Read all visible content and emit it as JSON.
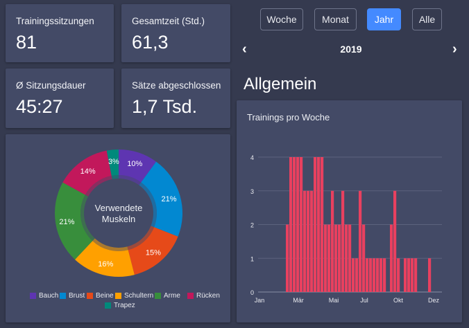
{
  "stats": [
    {
      "label": "Trainingssitzungen",
      "value": "81"
    },
    {
      "label": "Gesamtzeit (Std.)",
      "value": "61,3"
    },
    {
      "label": "Ø Sitzungsdauer",
      "value": "45:27"
    },
    {
      "label": "Sätze abgeschlossen",
      "value": "1,7 Tsd."
    }
  ],
  "period_buttons": [
    {
      "label": "Woche",
      "active": false
    },
    {
      "label": "Monat",
      "active": false
    },
    {
      "label": "Jahr",
      "active": true
    },
    {
      "label": "Alle",
      "active": false
    }
  ],
  "nav": {
    "prev_icon": "chevron-left-icon",
    "next_icon": "chevron-right-icon",
    "year": "2019"
  },
  "section_title": "Allgemein",
  "colors": {
    "accent": "#448aff",
    "bar": "#e8405f"
  },
  "chart_data": [
    {
      "type": "pie",
      "center_label": "Verwendete Muskeln",
      "slices": [
        {
          "name": "Bauch",
          "value": 10,
          "label": "10%",
          "color": "#5e35b1"
        },
        {
          "name": "Brust",
          "value": 21,
          "label": "21%",
          "color": "#0288d1"
        },
        {
          "name": "Beine",
          "value": 15,
          "label": "15%",
          "color": "#e64a19"
        },
        {
          "name": "Schultern",
          "value": 16,
          "label": "16%",
          "color": "#ffa000"
        },
        {
          "name": "Arme",
          "value": 21,
          "label": "21%",
          "color": "#388e3c"
        },
        {
          "name": "Rücken",
          "value": 14,
          "label": "14%",
          "color": "#c2185b"
        },
        {
          "name": "Trapez",
          "value": 3,
          "label": "3%",
          "color": "#00897b"
        }
      ],
      "legend_placement": "bottom"
    },
    {
      "type": "bar",
      "title": "Trainings pro Woche",
      "x_unit": "week of year",
      "x_ticks": [
        "Jan",
        "Mär",
        "Mai",
        "Jul",
        "Okt",
        "Dez"
      ],
      "y_ticks": [
        0,
        1,
        2,
        3,
        4
      ],
      "ylim": [
        0,
        4
      ],
      "grid": true,
      "weeks": [
        1,
        2,
        3,
        4,
        5,
        6,
        7,
        8,
        9,
        10,
        11,
        12,
        13,
        14,
        15,
        16,
        17,
        18,
        19,
        20,
        21,
        22,
        23,
        24,
        25,
        26,
        27,
        28,
        29,
        30,
        31,
        32,
        33,
        34,
        35,
        36,
        37,
        38,
        39,
        40,
        41,
        42,
        43,
        44,
        45,
        46,
        47,
        48,
        49,
        50,
        51,
        52
      ],
      "values": [
        0,
        0,
        0,
        0,
        0,
        0,
        0,
        2,
        4,
        4,
        4,
        4,
        3,
        3,
        3,
        4,
        4,
        4,
        2,
        2,
        3,
        2,
        2,
        3,
        2,
        2,
        1,
        1,
        3,
        2,
        1,
        1,
        1,
        1,
        1,
        1,
        0,
        2,
        3,
        1,
        0,
        1,
        1,
        1,
        1,
        0,
        0,
        0,
        1,
        0,
        0,
        0
      ]
    }
  ]
}
